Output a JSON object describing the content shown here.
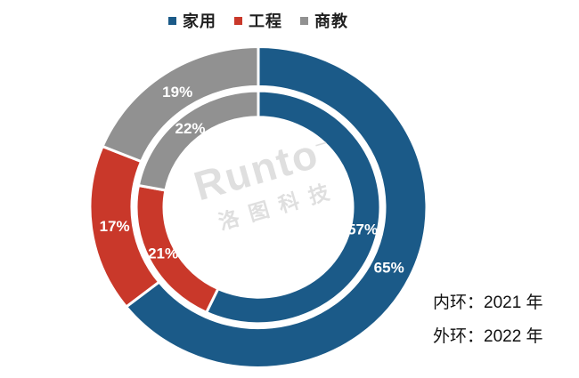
{
  "legend": {
    "items": [
      {
        "label": "家用",
        "color": "#1B5A88"
      },
      {
        "label": "工程",
        "color": "#C9382A"
      },
      {
        "label": "商教",
        "color": "#919191"
      }
    ]
  },
  "chart_data": {
    "type": "pie",
    "subtype": "double-ring-donut",
    "categories": [
      "家用",
      "工程",
      "商教"
    ],
    "colors": [
      "#1B5A88",
      "#C9382A",
      "#919191"
    ],
    "series": [
      {
        "name": "2021",
        "ring": "inner",
        "values": [
          57,
          21,
          22
        ]
      },
      {
        "name": "2022",
        "ring": "outer",
        "values": [
          65,
          17,
          19
        ]
      }
    ],
    "unit": "%",
    "start_angle_deg": 0,
    "direction": "clockwise",
    "legend_position": "top",
    "separator_color": "#ffffff",
    "label_color": "#ffffff"
  },
  "watermark": {
    "brand": "Runto",
    "mark": "–",
    "cjk": "洛图科技"
  },
  "annotations": {
    "inner_ring": "内环：2021 年",
    "outer_ring": "外环：2022 年"
  }
}
